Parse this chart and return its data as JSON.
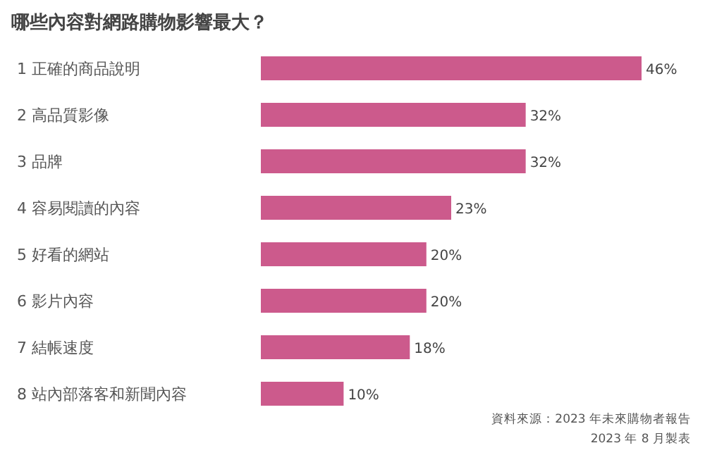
{
  "chart_data": {
    "type": "bar",
    "orientation": "horizontal",
    "title": "哪些內容對網路購物影響最大？",
    "categories": [
      "1  正確的商品說明",
      "2  高品質影像",
      "3  品牌",
      "4  容易閱讀的內容",
      "5  好看的網站",
      "6  影片內容",
      "7  結帳速度",
      "8  站內部落客和新聞內容"
    ],
    "values": [
      46,
      32,
      32,
      23,
      20,
      20,
      18,
      10
    ],
    "value_labels": [
      "46%",
      "32%",
      "32%",
      "23%",
      "20%",
      "20%",
      "18%",
      "10%"
    ],
    "color": "#cc5a8c",
    "annotations": [
      "資料來源：2023 年未來購物者報告",
      "2023 年 8 月製表"
    ]
  }
}
